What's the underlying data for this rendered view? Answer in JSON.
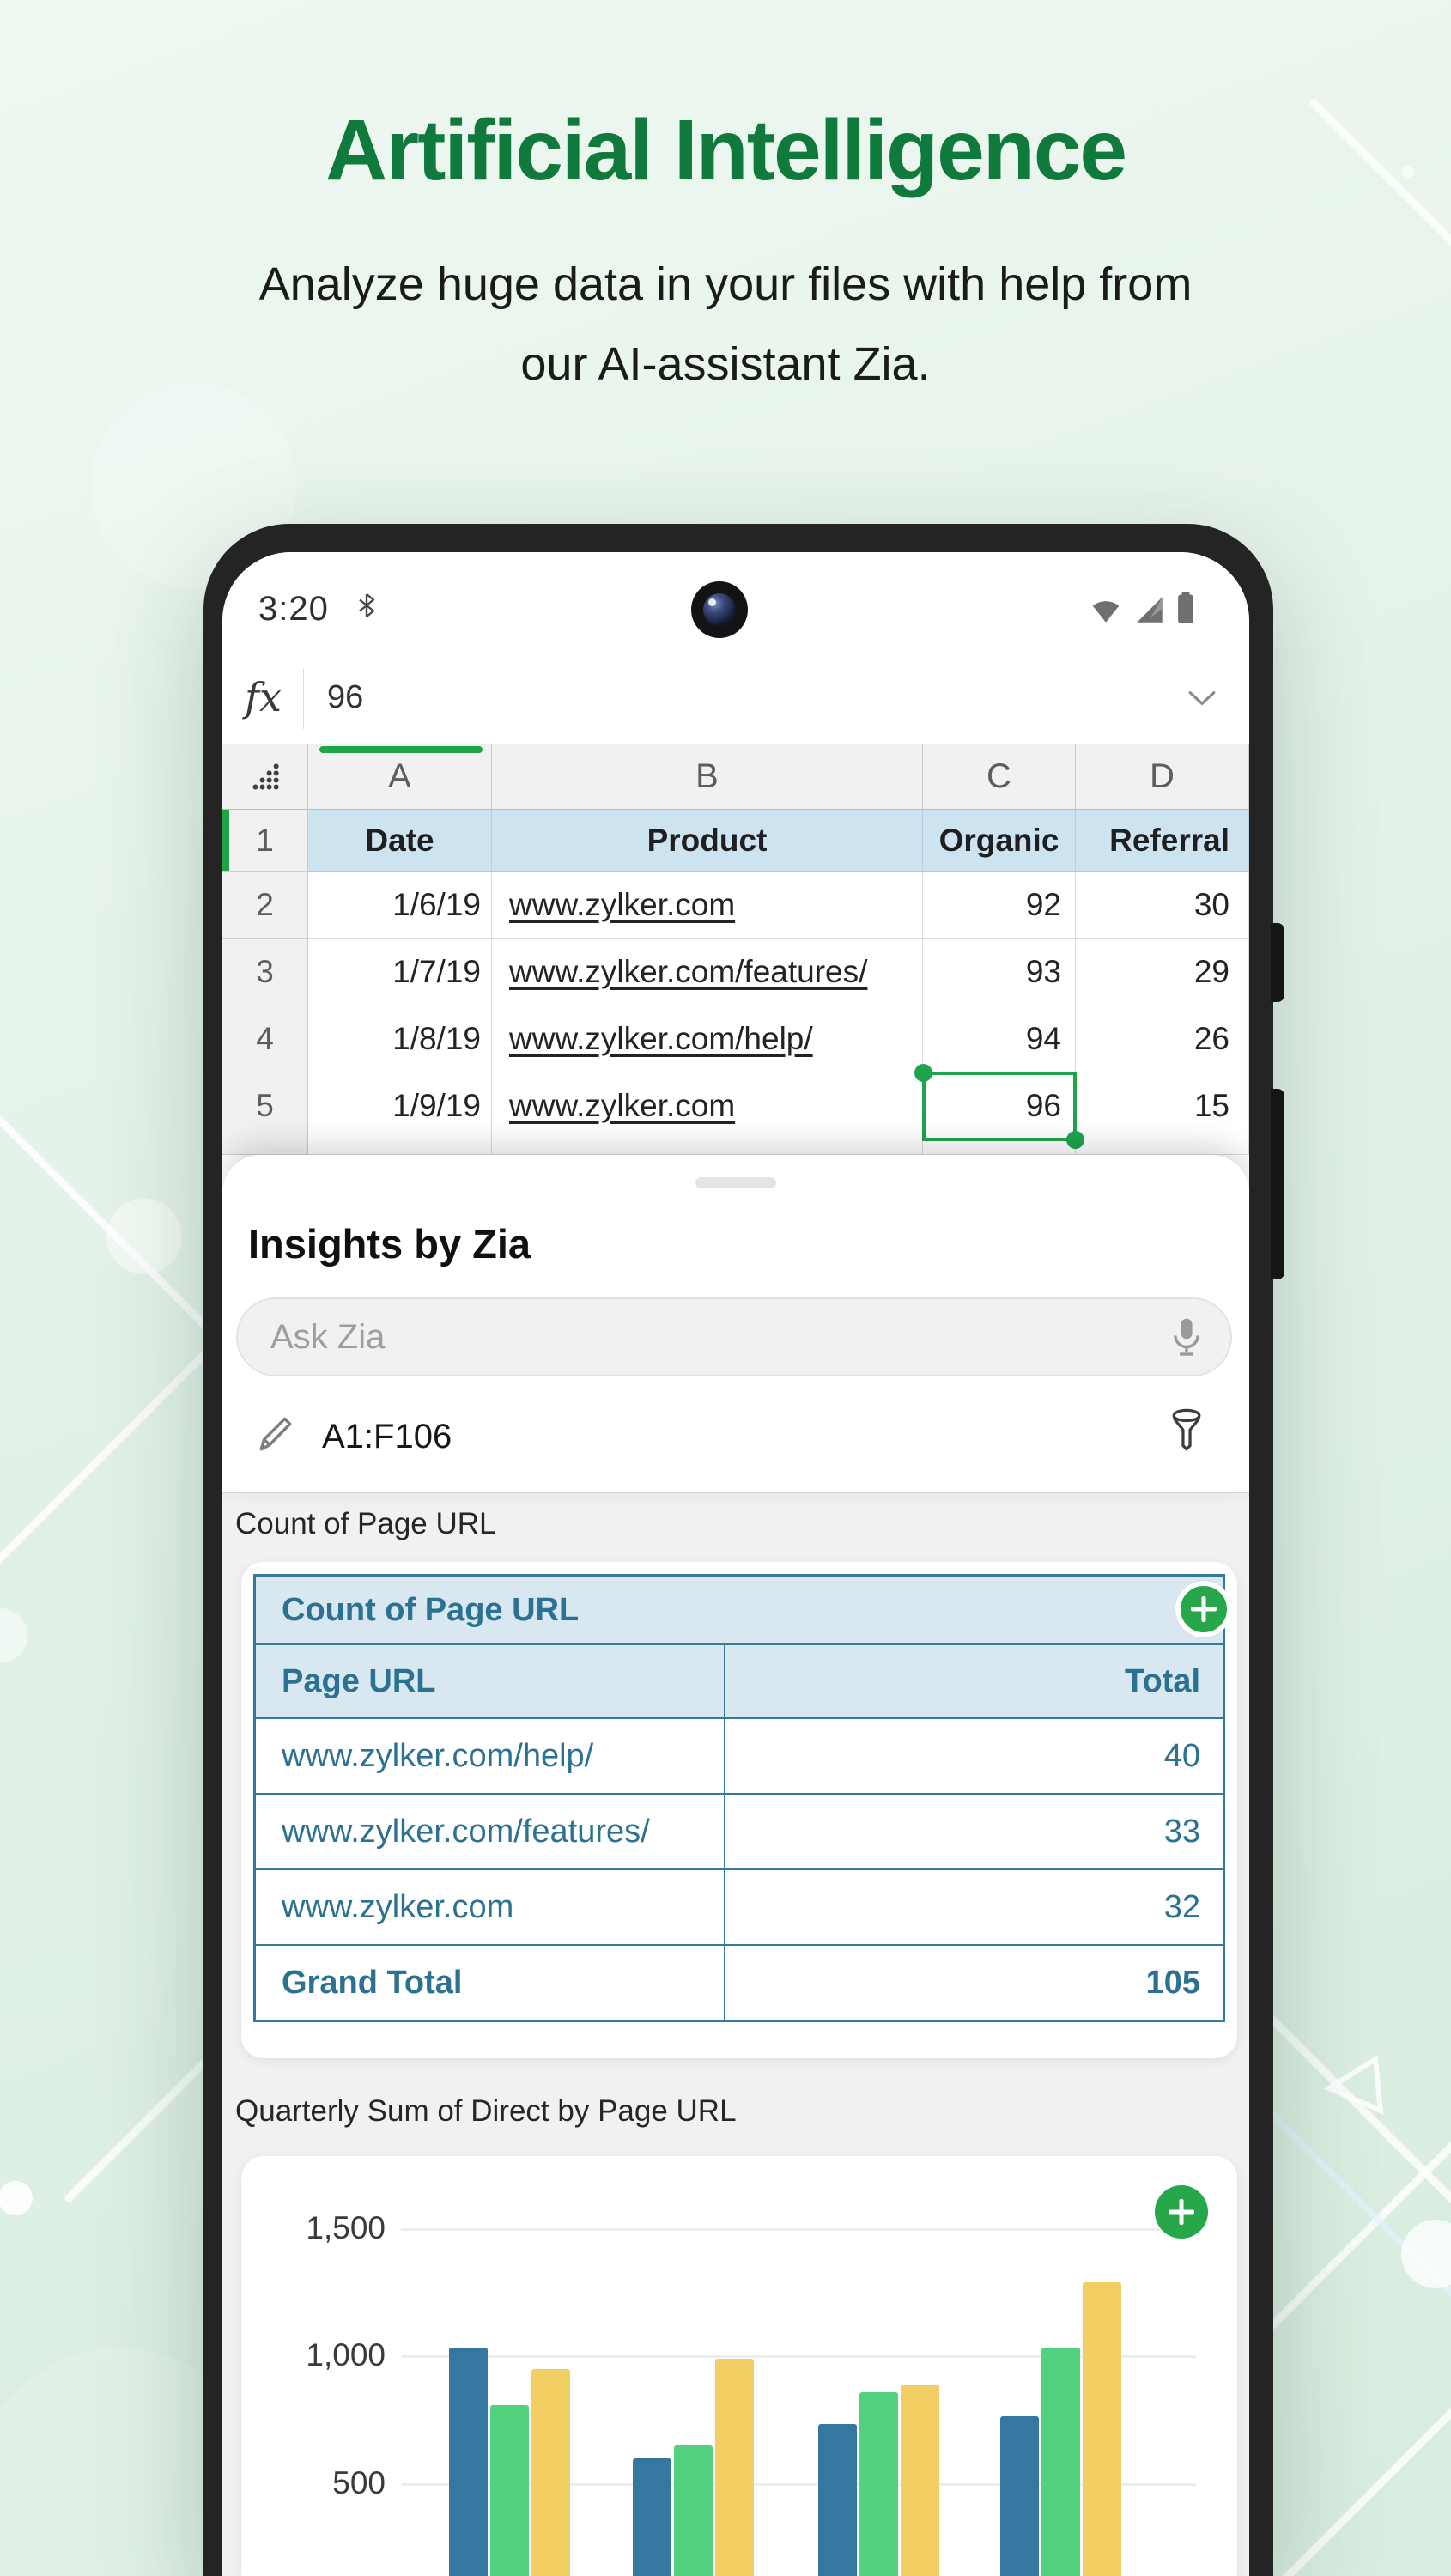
{
  "header": {
    "title": "Artificial Intelligence",
    "subtitle": "Analyze huge data in your files with help from our AI-assistant Zia."
  },
  "phone": {
    "status": {
      "time": "3:20"
    },
    "formula_bar": {
      "fx_label": "fx",
      "value": "96"
    },
    "sheet": {
      "col_letters": [
        "A",
        "B",
        "C",
        "D"
      ],
      "header_row": {
        "num": "1",
        "date": "Date",
        "product": "Product",
        "organic": "Organic",
        "referral": "Referral"
      },
      "rows": [
        {
          "num": "2",
          "date": "1/6/19",
          "product": "www.zylker.com",
          "organic": "92",
          "referral": "30"
        },
        {
          "num": "3",
          "date": "1/7/19",
          "product": "www.zylker.com/features/",
          "organic": "93",
          "referral": "29"
        },
        {
          "num": "4",
          "date": "1/8/19",
          "product": "www.zylker.com/help/",
          "organic": "94",
          "referral": "26"
        },
        {
          "num": "5",
          "date": "1/9/19",
          "product": "www.zylker.com",
          "organic": "96",
          "referral": "15"
        }
      ],
      "selected_cell": {
        "ref": "C5",
        "value": "96"
      }
    },
    "insights": {
      "title": "Insights by Zia",
      "ask_placeholder": "Ask Zia",
      "range": "A1:F106"
    },
    "pivot": {
      "section_label": "Count of Page URL",
      "table_title": "Count of Page URL",
      "columns": [
        "Page URL",
        "Total"
      ],
      "rows": [
        {
          "url": "www.zylker.com/help/",
          "total": "40"
        },
        {
          "url": "www.zylker.com/features/",
          "total": "33"
        },
        {
          "url": "www.zylker.com",
          "total": "32"
        }
      ],
      "grand_total": {
        "label": "Grand Total",
        "total": "105"
      }
    },
    "chart_section": {
      "label": "Quarterly Sum of Direct by Page URL"
    }
  },
  "chart_data": {
    "type": "bar",
    "title": "Quarterly Sum of Direct by Page URL",
    "groups": 4,
    "x_axis_labels_visible": false,
    "legend_visible": false,
    "grid": true,
    "ylim": [
      0,
      1500
    ],
    "yticks": [
      {
        "label": "1,500",
        "value": 1500
      },
      {
        "label": "1,000",
        "value": 1000
      },
      {
        "label": "500",
        "value": 500
      }
    ],
    "series": [
      {
        "name": "blue",
        "color": "#35789f",
        "values": [
          1035,
          600,
          735,
          765
        ]
      },
      {
        "name": "green",
        "color": "#52d17e",
        "values": [
          810,
          650,
          860,
          1035
        ]
      },
      {
        "name": "yellow",
        "color": "#f2cf63",
        "values": [
          950,
          990,
          890,
          1290
        ]
      }
    ]
  },
  "colors": {
    "accent_green": "#1ea546",
    "title_green": "#0f7a3c",
    "pivot_teal": "#2b7191",
    "bar_blue": "#35789f",
    "bar_green": "#52d17e",
    "bar_yellow": "#f2cf63"
  }
}
